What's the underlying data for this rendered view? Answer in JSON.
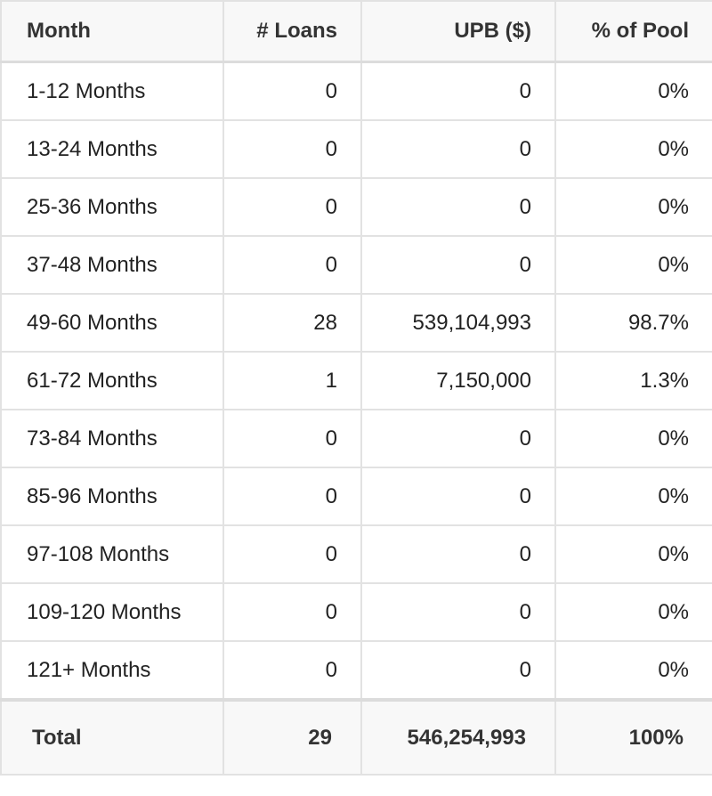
{
  "table": {
    "headers": {
      "month": "Month",
      "loans": "# Loans",
      "upb": "UPB ($)",
      "pool": "% of Pool"
    },
    "rows": [
      {
        "month": "1-12 Months",
        "loans": "0",
        "upb": "0",
        "pool": "0%"
      },
      {
        "month": "13-24 Months",
        "loans": "0",
        "upb": "0",
        "pool": "0%"
      },
      {
        "month": "25-36 Months",
        "loans": "0",
        "upb": "0",
        "pool": "0%"
      },
      {
        "month": "37-48 Months",
        "loans": "0",
        "upb": "0",
        "pool": "0%"
      },
      {
        "month": "49-60 Months",
        "loans": "28",
        "upb": "539,104,993",
        "pool": "98.7%"
      },
      {
        "month": "61-72 Months",
        "loans": "1",
        "upb": "7,150,000",
        "pool": "1.3%"
      },
      {
        "month": "73-84 Months",
        "loans": "0",
        "upb": "0",
        "pool": "0%"
      },
      {
        "month": "85-96 Months",
        "loans": "0",
        "upb": "0",
        "pool": "0%"
      },
      {
        "month": "97-108 Months",
        "loans": "0",
        "upb": "0",
        "pool": "0%"
      },
      {
        "month": "109-120 Months",
        "loans": "0",
        "upb": "0",
        "pool": "0%"
      },
      {
        "month": "121+ Months",
        "loans": "0",
        "upb": "0",
        "pool": "0%"
      }
    ],
    "total": {
      "label": "Total",
      "loans": "29",
      "upb": "546,254,993",
      "pool": "100%"
    }
  },
  "colors": {
    "border": "#e2e2e2",
    "header_background": "#f8f8f8",
    "text": "#222222"
  }
}
